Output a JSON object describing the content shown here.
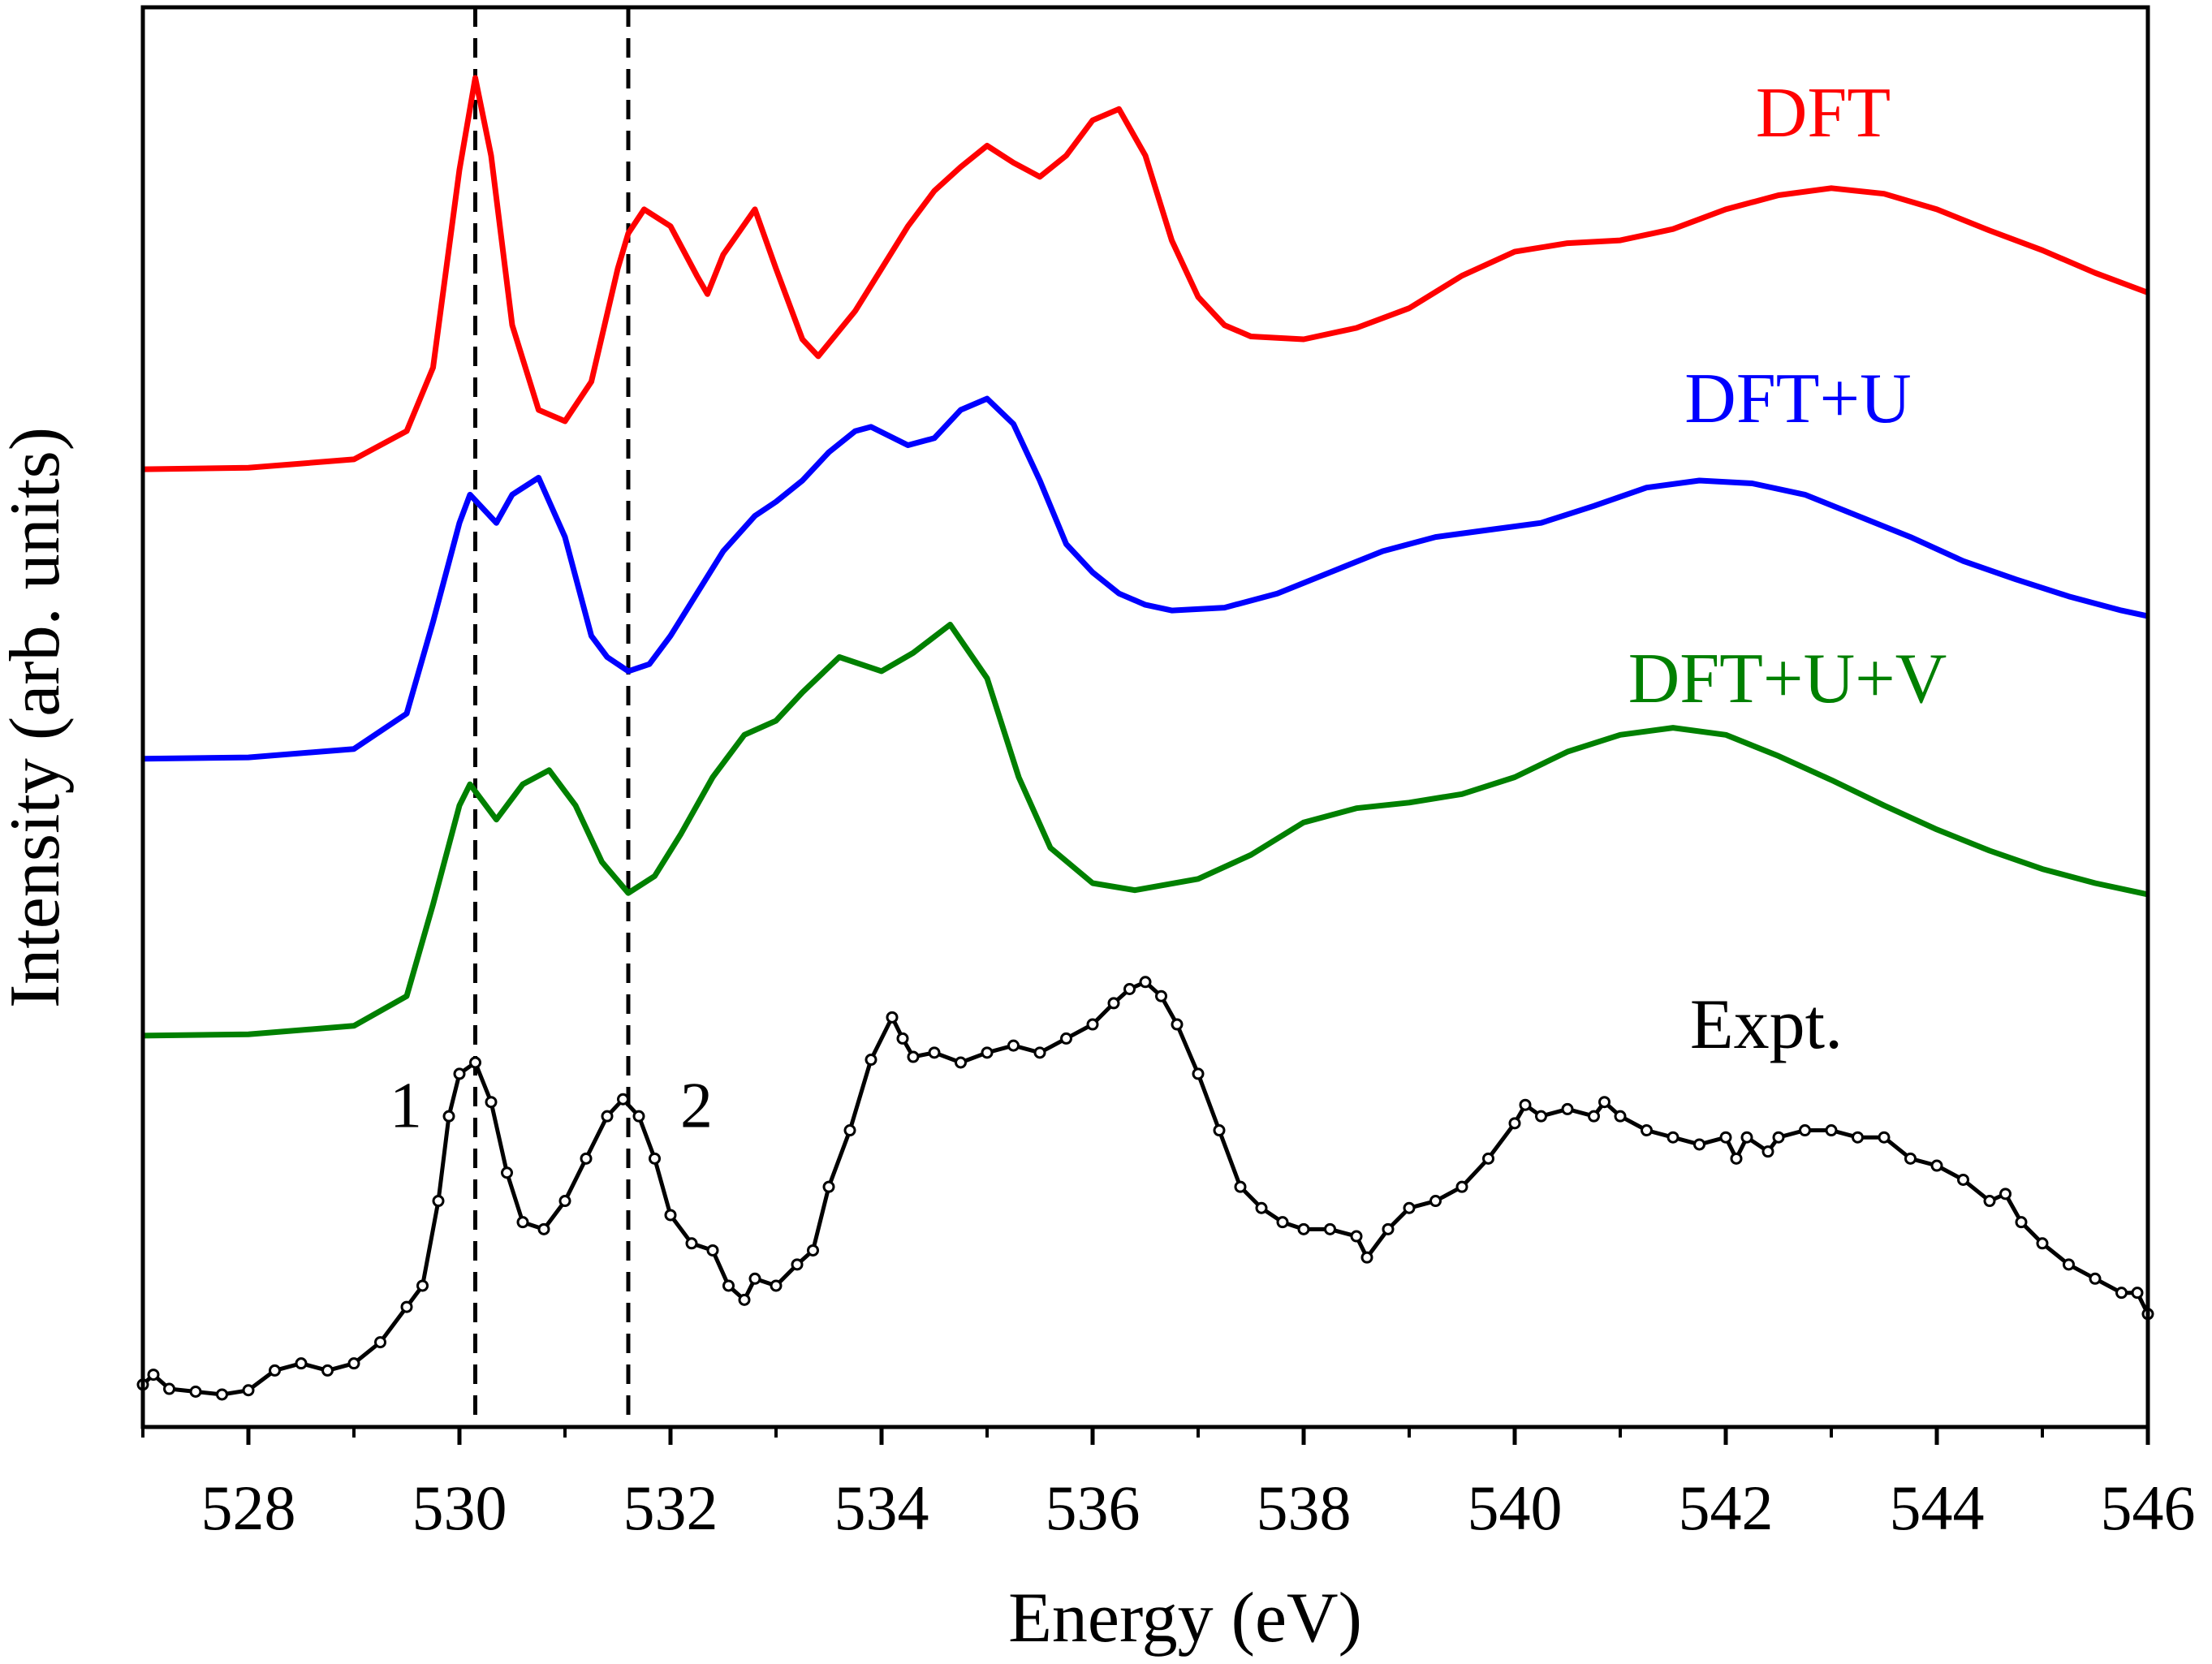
{
  "chart_data": {
    "type": "line",
    "xlabel": "Energy (eV)",
    "ylabel": "Intensity (arb. units)",
    "xlim": [
      527,
      546
    ],
    "xticks": [
      528,
      530,
      532,
      534,
      536,
      538,
      540,
      542,
      544,
      546
    ],
    "xminorticks": [
      527,
      529,
      531,
      533,
      535,
      537,
      539,
      541,
      543,
      545
    ],
    "ylim": [
      0,
      1005
    ],
    "vlines": [
      530.15,
      531.6
    ],
    "annotations": [
      "1",
      "2"
    ],
    "series": [
      {
        "name": "DFT",
        "color": "#ff0000",
        "markers": false,
        "x": [
          527,
          528,
          529,
          529.5,
          529.75,
          530,
          530.15,
          530.3,
          530.5,
          530.75,
          531,
          531.25,
          531.5,
          531.6,
          531.75,
          532,
          532.25,
          532.35,
          532.5,
          532.8,
          533,
          533.25,
          533.4,
          533.75,
          534,
          534.25,
          534.5,
          534.75,
          535,
          535.25,
          535.5,
          535.75,
          536,
          536.25,
          536.5,
          536.75,
          537,
          537.25,
          537.5,
          538,
          538.5,
          539,
          539.5,
          540,
          540.5,
          541,
          541.5,
          542,
          542.5,
          543,
          543.5,
          544,
          544.5,
          545,
          545.5,
          546
        ],
        "values": [
          678,
          679,
          685,
          705,
          750,
          890,
          955,
          900,
          780,
          720,
          712,
          740,
          820,
          845,
          862,
          850,
          815,
          802,
          830,
          862,
          820,
          770,
          758,
          790,
          820,
          850,
          875,
          892,
          907,
          895,
          885,
          900,
          925,
          933,
          900,
          840,
          800,
          780,
          772,
          770,
          778,
          792,
          815,
          832,
          838,
          840,
          848,
          862,
          872,
          877,
          873,
          862,
          847,
          833,
          817,
          803
        ]
      },
      {
        "name": "DFT+U",
        "color": "#0000ff",
        "markers": false,
        "x": [
          527,
          528,
          529,
          529.5,
          529.75,
          530,
          530.1,
          530.35,
          530.5,
          530.75,
          531,
          531.25,
          531.4,
          531.6,
          531.8,
          532,
          532.5,
          532.8,
          533,
          533.25,
          533.5,
          533.75,
          533.9,
          534.25,
          534.5,
          534.75,
          535,
          535.25,
          535.5,
          535.75,
          536,
          536.25,
          536.5,
          536.75,
          537.25,
          537.75,
          538.25,
          538.75,
          539.25,
          539.75,
          540.25,
          540.75,
          541.25,
          541.75,
          542.25,
          542.75,
          543.25,
          543.75,
          544.25,
          544.75,
          545.25,
          545.75,
          546
        ],
        "values": [
          473,
          474,
          480,
          505,
          570,
          640,
          660,
          640,
          660,
          672,
          630,
          560,
          545,
          535,
          540,
          560,
          620,
          645,
          655,
          670,
          690,
          705,
          708,
          695,
          700,
          720,
          728,
          710,
          670,
          625,
          605,
          590,
          582,
          578,
          580,
          590,
          605,
          620,
          630,
          635,
          640,
          652,
          665,
          670,
          668,
          660,
          645,
          630,
          613,
          600,
          588,
          578,
          574
        ]
      },
      {
        "name": "DFT+U+V",
        "color": "#008000",
        "markers": false,
        "x": [
          527,
          528,
          529,
          529.5,
          529.75,
          530,
          530.1,
          530.35,
          530.6,
          530.85,
          531.1,
          531.35,
          531.6,
          531.85,
          532.1,
          532.4,
          532.7,
          533,
          533.25,
          533.6,
          534,
          534.3,
          534.65,
          535,
          535.3,
          535.6,
          536,
          536.4,
          537,
          537.5,
          538,
          538.5,
          539,
          539.5,
          540,
          540.5,
          541,
          541.5,
          542,
          542.5,
          543,
          543.5,
          544,
          544.5,
          545,
          545.5,
          546
        ],
        "values": [
          277,
          278,
          284,
          305,
          370,
          440,
          455,
          430,
          455,
          465,
          440,
          400,
          378,
          390,
          420,
          460,
          490,
          500,
          520,
          545,
          535,
          548,
          568,
          530,
          460,
          410,
          385,
          380,
          388,
          405,
          428,
          438,
          442,
          448,
          460,
          478,
          490,
          495,
          490,
          475,
          458,
          440,
          423,
          408,
          395,
          385,
          377
        ]
      },
      {
        "name": "Expt.",
        "color": "#000000",
        "markers": true,
        "x": [
          527,
          527.1,
          527.25,
          527.5,
          527.75,
          528,
          528.25,
          528.5,
          528.75,
          529,
          529.25,
          529.5,
          529.65,
          529.8,
          529.9,
          530,
          530.15,
          530.3,
          530.45,
          530.6,
          530.8,
          531,
          531.2,
          531.4,
          531.55,
          531.7,
          531.85,
          532,
          532.2,
          532.4,
          532.55,
          532.7,
          532.8,
          533,
          533.2,
          533.35,
          533.5,
          533.7,
          533.9,
          534.1,
          534.2,
          534.3,
          534.5,
          534.75,
          535,
          535.25,
          535.5,
          535.75,
          536,
          536.2,
          536.35,
          536.5,
          536.65,
          536.8,
          537,
          537.2,
          537.4,
          537.6,
          537.8,
          538,
          538.25,
          538.5,
          538.6,
          538.8,
          539,
          539.25,
          539.5,
          539.75,
          540,
          540.1,
          540.25,
          540.5,
          540.75,
          540.85,
          541,
          541.25,
          541.5,
          541.75,
          542,
          542.1,
          542.2,
          542.4,
          542.5,
          542.75,
          543,
          543.25,
          543.5,
          543.75,
          544,
          544.25,
          544.5,
          544.65,
          544.8,
          545,
          545.25,
          545.5,
          545.75,
          545.9,
          546
        ],
        "values": [
          30,
          37,
          27,
          25,
          23,
          26,
          40,
          45,
          40,
          45,
          60,
          85,
          100,
          160,
          220,
          250,
          258,
          230,
          180,
          145,
          140,
          160,
          190,
          220,
          232,
          220,
          190,
          150,
          130,
          125,
          100,
          90,
          105,
          100,
          115,
          125,
          170,
          210,
          260,
          290,
          275,
          262,
          265,
          258,
          265,
          270,
          265,
          275,
          285,
          300,
          310,
          315,
          305,
          285,
          250,
          210,
          170,
          155,
          145,
          140,
          140,
          135,
          120,
          140,
          155,
          160,
          170,
          190,
          215,
          228,
          220,
          225,
          220,
          230,
          220,
          210,
          205,
          200,
          205,
          190,
          205,
          195,
          205,
          210,
          210,
          205,
          205,
          190,
          185,
          175,
          160,
          165,
          145,
          130,
          115,
          105,
          95,
          95,
          80
        ]
      }
    ]
  }
}
